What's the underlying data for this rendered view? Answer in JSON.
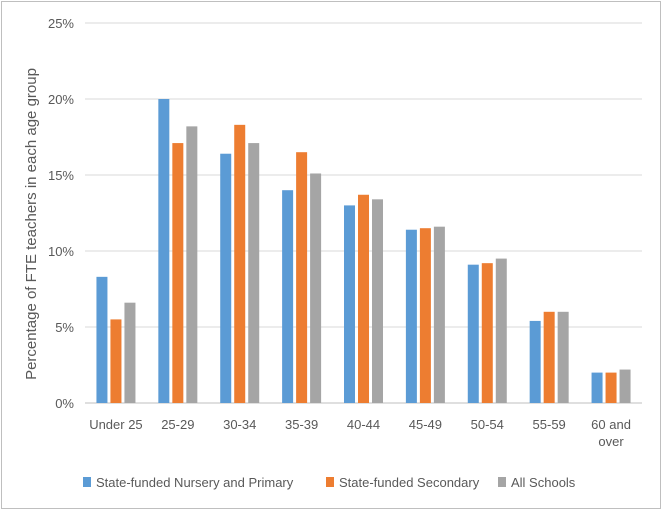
{
  "chart_data": {
    "type": "bar",
    "title": "",
    "xlabel": "",
    "ylabel": "Percentage of FTE teachers in each age group",
    "ylim": [
      0,
      25
    ],
    "yticks": [
      "0%",
      "5%",
      "10%",
      "15%",
      "20%",
      "25%"
    ],
    "ytick_values": [
      0,
      5,
      10,
      15,
      20,
      25
    ],
    "categories": [
      [
        "Under 25"
      ],
      [
        "25-29"
      ],
      [
        "30-34"
      ],
      [
        "35-39"
      ],
      [
        "40-44"
      ],
      [
        "45-49"
      ],
      [
        "50-54"
      ],
      [
        "55-59"
      ],
      [
        "60 and",
        "over"
      ]
    ],
    "series": [
      {
        "name": "State-funded Nursery and Primary",
        "color": "#5b9bd5",
        "values": [
          8.3,
          20.0,
          16.4,
          14.0,
          13.0,
          11.4,
          9.1,
          5.4,
          2.0
        ]
      },
      {
        "name": "State-funded Secondary",
        "color": "#ed7d31",
        "values": [
          5.5,
          17.1,
          18.3,
          16.5,
          13.7,
          11.5,
          9.2,
          6.0,
          2.0
        ]
      },
      {
        "name": "All Schools",
        "color": "#a5a5a5",
        "values": [
          6.6,
          18.2,
          17.1,
          15.1,
          13.4,
          11.6,
          9.5,
          6.0,
          2.2
        ]
      }
    ],
    "grid": true,
    "legend": "bottom"
  }
}
